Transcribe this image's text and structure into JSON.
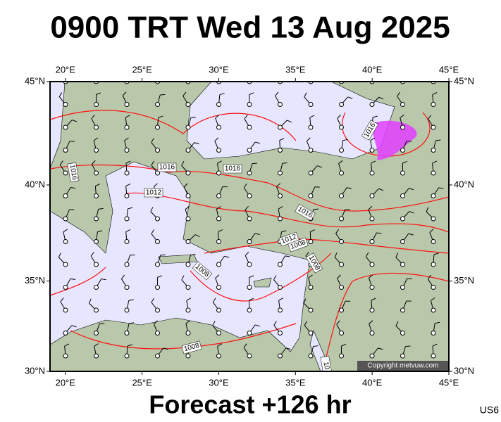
{
  "title": "0900 TRT Wed 13 Aug 2025",
  "footer": "Forecast +126 hr",
  "code": "US6",
  "copyright": "Copyright metvuw.com",
  "lon_ticks": [
    {
      "value": 20,
      "label": "20°E"
    },
    {
      "value": 25,
      "label": "25°E"
    },
    {
      "value": 30,
      "label": "30°E"
    },
    {
      "value": 35,
      "label": "35°E"
    },
    {
      "value": 40,
      "label": "40°E"
    },
    {
      "value": 45,
      "label": "45°E"
    }
  ],
  "lat_ticks": [
    {
      "value": 45,
      "label": "45°N"
    },
    {
      "value": 40,
      "label": "40°N"
    },
    {
      "value": 35,
      "label": "35°N"
    },
    {
      "value": 30,
      "label": "30°N"
    }
  ],
  "isobar_labels": [
    "1016",
    "1016",
    "1016",
    "1016",
    "1012",
    "1016",
    "1012",
    "1008",
    "1008",
    "1008",
    "1008",
    "10"
  ]
}
